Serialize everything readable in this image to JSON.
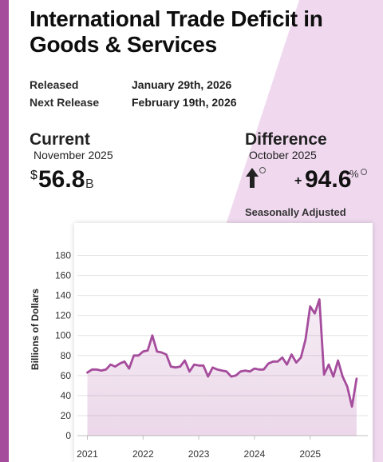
{
  "header": {
    "title": "International Trade Deficit in Goods & Services"
  },
  "release": {
    "released_label": "Released",
    "released_value": "January 29th, 2026",
    "next_label": "Next Release",
    "next_value": "February 19th, 2026"
  },
  "current": {
    "heading": "Current",
    "period": "November 2025",
    "currency_symbol": "$",
    "value": "56.8",
    "unit": "B"
  },
  "difference": {
    "heading": "Difference",
    "period": "October 2025",
    "sign": "+",
    "value": "94.6",
    "unit": "%",
    "direction": "up"
  },
  "adjustment_note": "Seasonally Adjusted",
  "colors": {
    "accent": "#a54c9c",
    "background_tint": "#f0d9ef",
    "line": "#a54c9c"
  },
  "chart_data": {
    "type": "line",
    "title": "",
    "xlabel": "",
    "ylabel": "Billions of Dollars",
    "ylim": [
      0,
      180
    ],
    "yticks": [
      0,
      20,
      40,
      60,
      80,
      100,
      120,
      140,
      160,
      180
    ],
    "xticks": [
      "2021",
      "2022",
      "2023",
      "2024",
      "2025"
    ],
    "grid": true,
    "series": [
      {
        "name": "",
        "x": [
          "2021-01",
          "2021-02",
          "2021-03",
          "2021-04",
          "2021-05",
          "2021-06",
          "2021-07",
          "2021-08",
          "2021-09",
          "2021-10",
          "2021-11",
          "2021-12",
          "2022-01",
          "2022-02",
          "2022-03",
          "2022-04",
          "2022-05",
          "2022-06",
          "2022-07",
          "2022-08",
          "2022-09",
          "2022-10",
          "2022-11",
          "2022-12",
          "2023-01",
          "2023-02",
          "2023-03",
          "2023-04",
          "2023-05",
          "2023-06",
          "2023-07",
          "2023-08",
          "2023-09",
          "2023-10",
          "2023-11",
          "2023-12",
          "2024-01",
          "2024-02",
          "2024-03",
          "2024-04",
          "2024-05",
          "2024-06",
          "2024-07",
          "2024-08",
          "2024-09",
          "2024-10",
          "2024-11",
          "2024-12",
          "2025-01",
          "2025-02",
          "2025-03",
          "2025-04",
          "2025-05",
          "2025-06",
          "2025-07",
          "2025-08",
          "2025-09",
          "2025-10",
          "2025-11"
        ],
        "values": [
          63,
          66,
          66,
          65,
          66,
          71,
          69,
          72,
          74,
          67,
          80,
          80,
          84,
          85,
          100,
          84,
          83,
          81,
          69,
          68,
          69,
          75,
          64,
          71,
          70,
          70,
          59,
          68,
          66,
          65,
          64,
          59,
          60,
          64,
          65,
          64,
          67,
          66,
          66,
          72,
          74,
          74,
          78,
          71,
          81,
          73,
          78,
          96,
          129,
          122,
          136,
          61,
          71,
          59,
          75,
          59,
          49,
          29,
          56.8
        ]
      }
    ]
  }
}
